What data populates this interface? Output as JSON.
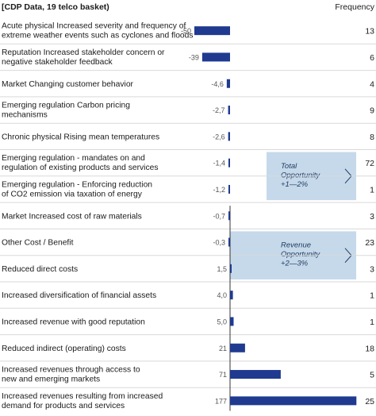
{
  "header": {
    "title": "[CDP Data, 19 telco basket)",
    "frequency_label": "Frequency"
  },
  "colors": {
    "bar": "#1f3a8f",
    "zero_line": "#333333",
    "divider": "#d9d9d9",
    "highlight_box": "#c5d9ea",
    "highlight_text": "#1f3a5f"
  },
  "highlights": [
    {
      "lines": [
        "Total",
        "Opportunity",
        "+1—2%"
      ],
      "rows": [
        5,
        6
      ]
    },
    {
      "lines": [
        "Revenue",
        "Opportunity",
        "+2—3%"
      ],
      "rows": [
        8,
        9
      ]
    }
  ],
  "chart_data": {
    "type": "bar",
    "orientation": "horizontal",
    "categories": [
      [
        "Acute physical Increased severity and frequency of",
        "extreme weather events such as cyclones and floods"
      ],
      [
        "Reputation Increased stakeholder concern or",
        "negative stakeholder feedback"
      ],
      [
        "Market Changing customer behavior"
      ],
      [
        "Emerging regulation Carbon pricing",
        "mechanisms"
      ],
      [
        "Chronic physical Rising mean temperatures"
      ],
      [
        "Emerging regulation - mandates on and",
        "regulation of existing products and services"
      ],
      [
        "Emerging regulation - Enforcing reduction",
        "of CO2 emission via taxation of energy"
      ],
      [
        "Market Increased cost of raw materials"
      ],
      [
        "Other Cost / Benefit"
      ],
      [
        "Reduced direct costs"
      ],
      [
        "Increased diversification of financial assets"
      ],
      [
        "Increased revenue with good reputation"
      ],
      [
        "Reduced indirect (operating) costs"
      ],
      [
        "Increased revenues through access to",
        "new and emerging markets"
      ],
      [
        "Increased revenues resulting from increased",
        "demand for products and services"
      ]
    ],
    "values": [
      -50,
      -39,
      -4.6,
      -2.7,
      -2.6,
      -1.4,
      -1.2,
      -0.7,
      -0.3,
      1.5,
      4.0,
      5.0,
      21,
      71,
      177
    ],
    "value_labels": [
      "-50",
      "-39",
      "-4,6",
      "-2,7",
      "-2,6",
      "-1,4",
      "-1,2",
      "-0,7",
      "-0,3",
      "1,5",
      "4,0",
      "5,0",
      "21",
      "71",
      "177"
    ],
    "frequency": [
      "13",
      "6",
      "4",
      "9",
      "8",
      "72",
      "1",
      "3",
      "23",
      "3",
      "1",
      "1",
      "18",
      "5",
      "25"
    ]
  }
}
